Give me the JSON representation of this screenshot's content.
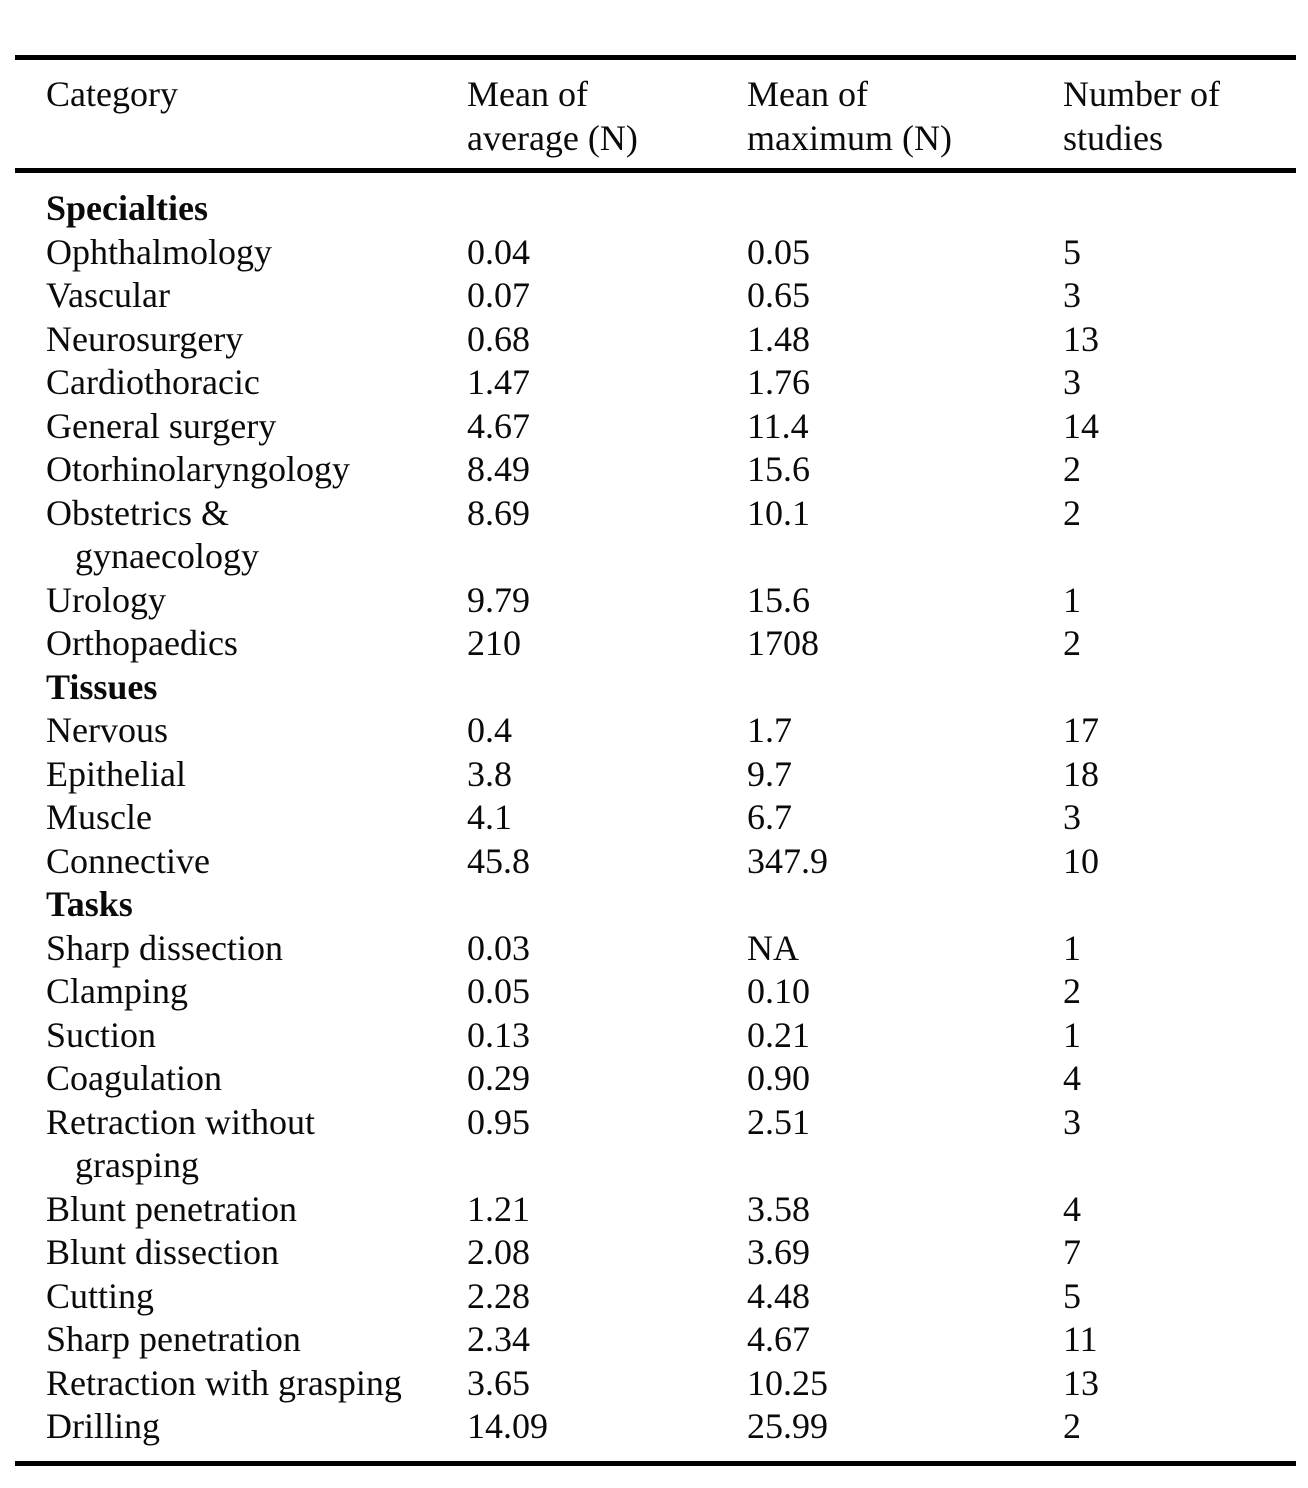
{
  "page": {
    "background_color": "#ffffff",
    "text_color": "#0a0a0a",
    "rule_color": "#000000"
  },
  "table": {
    "columns": [
      {
        "id": "category",
        "lines": [
          "Category"
        ]
      },
      {
        "id": "mean_avg",
        "lines": [
          "Mean of",
          "average (N)"
        ]
      },
      {
        "id": "mean_max",
        "lines": [
          "Mean of",
          "maximum (N)"
        ]
      },
      {
        "id": "n_studies",
        "lines": [
          "Number of",
          "studies"
        ]
      }
    ],
    "sections": [
      {
        "header": "Specialties",
        "rows": [
          {
            "category": [
              "Ophthalmology"
            ],
            "mean_avg": "0.04",
            "mean_max": "0.05",
            "n_studies": "5"
          },
          {
            "category": [
              "Vascular"
            ],
            "mean_avg": "0.07",
            "mean_max": "0.65",
            "n_studies": "3"
          },
          {
            "category": [
              "Neurosurgery"
            ],
            "mean_avg": "0.68",
            "mean_max": "1.48",
            "n_studies": "13"
          },
          {
            "category": [
              "Cardiothoracic"
            ],
            "mean_avg": "1.47",
            "mean_max": "1.76",
            "n_studies": "3"
          },
          {
            "category": [
              "General surgery"
            ],
            "mean_avg": "4.67",
            "mean_max": "11.4",
            "n_studies": "14"
          },
          {
            "category": [
              "Otorhinolaryngology"
            ],
            "mean_avg": "8.49",
            "mean_max": "15.6",
            "n_studies": "2"
          },
          {
            "category": [
              "Obstetrics &",
              "gynaecology"
            ],
            "mean_avg": "8.69",
            "mean_max": "10.1",
            "n_studies": "2"
          },
          {
            "category": [
              "Urology"
            ],
            "mean_avg": "9.79",
            "mean_max": "15.6",
            "n_studies": "1"
          },
          {
            "category": [
              "Orthopaedics"
            ],
            "mean_avg": "210",
            "mean_max": "1708",
            "n_studies": "2"
          }
        ]
      },
      {
        "header": "Tissues",
        "rows": [
          {
            "category": [
              "Nervous"
            ],
            "mean_avg": "0.4",
            "mean_max": "1.7",
            "n_studies": "17"
          },
          {
            "category": [
              "Epithelial"
            ],
            "mean_avg": "3.8",
            "mean_max": "9.7",
            "n_studies": "18"
          },
          {
            "category": [
              "Muscle"
            ],
            "mean_avg": "4.1",
            "mean_max": "6.7",
            "n_studies": "3"
          },
          {
            "category": [
              "Connective"
            ],
            "mean_avg": "45.8",
            "mean_max": "347.9",
            "n_studies": "10"
          }
        ]
      },
      {
        "header": "Tasks",
        "rows": [
          {
            "category": [
              "Sharp dissection"
            ],
            "mean_avg": "0.03",
            "mean_max": "NA",
            "n_studies": "1"
          },
          {
            "category": [
              "Clamping"
            ],
            "mean_avg": "0.05",
            "mean_max": "0.10",
            "n_studies": "2"
          },
          {
            "category": [
              "Suction"
            ],
            "mean_avg": "0.13",
            "mean_max": "0.21",
            "n_studies": "1"
          },
          {
            "category": [
              "Coagulation"
            ],
            "mean_avg": "0.29",
            "mean_max": "0.90",
            "n_studies": "4"
          },
          {
            "category": [
              "Retraction without",
              "grasping"
            ],
            "mean_avg": "0.95",
            "mean_max": "2.51",
            "n_studies": "3"
          },
          {
            "category": [
              "Blunt penetration"
            ],
            "mean_avg": "1.21",
            "mean_max": "3.58",
            "n_studies": "4"
          },
          {
            "category": [
              "Blunt dissection"
            ],
            "mean_avg": "2.08",
            "mean_max": "3.69",
            "n_studies": "7"
          },
          {
            "category": [
              "Cutting"
            ],
            "mean_avg": "2.28",
            "mean_max": "4.48",
            "n_studies": "5"
          },
          {
            "category": [
              "Sharp penetration"
            ],
            "mean_avg": "2.34",
            "mean_max": "4.67",
            "n_studies": "11"
          },
          {
            "category": [
              "Retraction with grasping"
            ],
            "mean_avg": "3.65",
            "mean_max": "10.25",
            "n_studies": "13"
          },
          {
            "category": [
              "Drilling"
            ],
            "mean_avg": "14.09",
            "mean_max": "25.99",
            "n_studies": "2"
          }
        ]
      }
    ]
  }
}
